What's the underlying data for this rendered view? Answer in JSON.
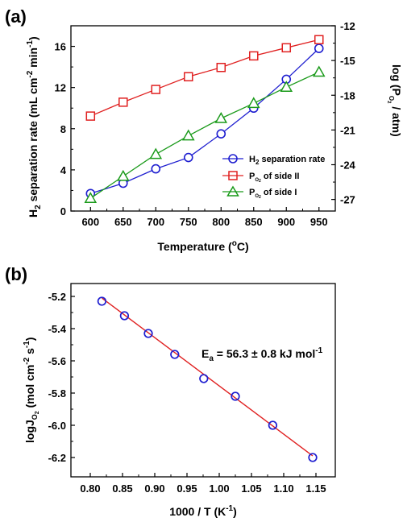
{
  "chart_data": [
    {
      "panel": "(a)",
      "type": "line",
      "xlabel": "Temperature (°C)",
      "x": [
        600,
        650,
        700,
        750,
        800,
        850,
        900,
        950
      ],
      "xlim": [
        570,
        975
      ],
      "xticks": [
        600,
        650,
        700,
        750,
        800,
        850,
        900,
        950
      ],
      "ylabel_left": "H2 separation rate (mL cm-2 min-1)",
      "ylim_left": [
        0,
        18
      ],
      "yticks_left": [
        0,
        4,
        8,
        12,
        16
      ],
      "ylabel_right": "log (PO2 / atm)",
      "ylim_right": [
        -28,
        -12
      ],
      "yticks_right": [
        -27,
        -24,
        -21,
        -18,
        -15,
        -12
      ],
      "legend_position": "bottom-right",
      "grid": false,
      "series": [
        {
          "name": "H2 separation rate",
          "axis": "left",
          "marker": "circle",
          "color": "#1f1fd0",
          "values": [
            1.7,
            2.7,
            4.1,
            5.2,
            7.5,
            10.0,
            12.8,
            15.8
          ]
        },
        {
          "name": "PO2 of side II",
          "axis": "right",
          "marker": "square",
          "color": "#e02020",
          "values": [
            -19.8,
            -18.6,
            -17.5,
            -16.4,
            -15.6,
            -14.6,
            -13.9,
            -13.2
          ]
        },
        {
          "name": "PO2 of side I",
          "axis": "right",
          "marker": "triangle",
          "color": "#1a9a1a",
          "values": [
            -26.9,
            -25.0,
            -23.1,
            -21.5,
            -20.0,
            -18.7,
            -17.3,
            -16.0
          ]
        }
      ]
    },
    {
      "panel": "(b)",
      "type": "scatter",
      "xlabel": "1000 / T (K-1)",
      "ylabel": "logJO2 (mol cm-2 s-1)",
      "xlim": [
        0.77,
        1.18
      ],
      "xticks": [
        "0.80",
        "0.85",
        "0.90",
        "0.95",
        "1.00",
        "1.05",
        "1.10",
        "1.15"
      ],
      "ylim": [
        -6.32,
        -5.12
      ],
      "yticks": [
        "-6.2",
        "-6.0",
        "-5.8",
        "-5.6",
        "-5.4",
        "-5.2"
      ],
      "annotation": "Ea = 56.3 ± 0.8 kJ mol-1",
      "grid": false,
      "fit_line_color": "#e02020",
      "marker_color": "#1f1fd0",
      "points": {
        "x": [
          0.818,
          0.853,
          0.89,
          0.931,
          0.976,
          1.025,
          1.083,
          1.145
        ],
        "y": [
          -5.23,
          -5.32,
          -5.43,
          -5.56,
          -5.71,
          -5.82,
          -6.0,
          -6.2
        ]
      },
      "fit": {
        "x": [
          0.818,
          1.145
        ],
        "y": [
          -5.21,
          -6.19
        ]
      }
    }
  ]
}
